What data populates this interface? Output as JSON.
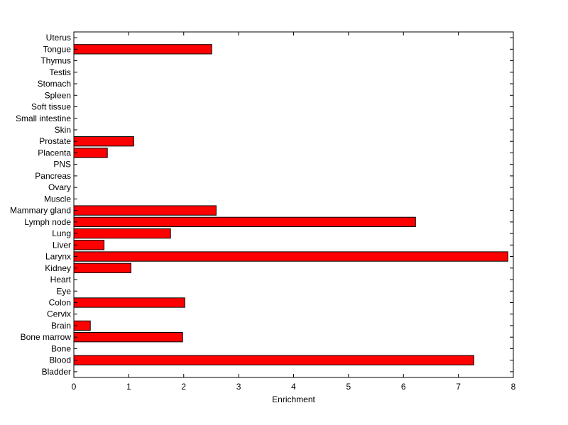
{
  "chart_data": {
    "type": "bar",
    "orientation": "horizontal",
    "title": "",
    "xlabel": "Enrichment",
    "ylabel": "",
    "xlim": [
      0,
      8
    ],
    "xticks": [
      0,
      1,
      2,
      3,
      4,
      5,
      6,
      7,
      8
    ],
    "grid": false,
    "bar_color": "#ff0000",
    "bar_edge_color": "#000000",
    "categories": [
      "Bladder",
      "Blood",
      "Bone",
      "Bone marrow",
      "Brain",
      "Cervix",
      "Colon",
      "Eye",
      "Heart",
      "Kidney",
      "Larynx",
      "Liver",
      "Lung",
      "Lymph node",
      "Mammary gland",
      "Muscle",
      "Ovary",
      "Pancreas",
      "PNS",
      "Placenta",
      "Prostate",
      "Skin",
      "Small intestine",
      "Soft tissue",
      "Spleen",
      "Stomach",
      "Testis",
      "Thymus",
      "Tongue",
      "Uterus"
    ],
    "values": [
      0,
      7.28,
      0,
      1.98,
      0.3,
      0,
      2.02,
      0,
      0,
      1.04,
      7.9,
      0.55,
      1.76,
      6.22,
      2.59,
      0,
      0,
      0,
      0,
      0.61,
      1.09,
      0,
      0,
      0,
      0,
      0,
      0,
      0,
      2.51,
      0
    ]
  }
}
